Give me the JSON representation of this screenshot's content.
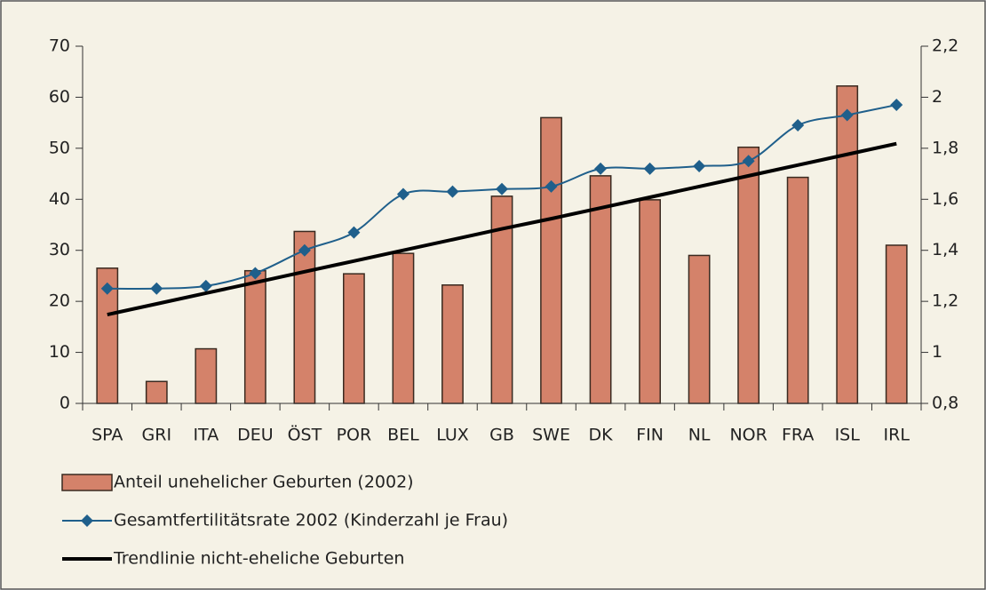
{
  "chart_data": {
    "type": "bar",
    "categories": [
      "SPA",
      "GRI",
      "ITA",
      "DEU",
      "ÖST",
      "POR",
      "BEL",
      "LUX",
      "GB",
      "SWE",
      "DK",
      "FIN",
      "NL",
      "NOR",
      "FRA",
      "ISL",
      "IRL"
    ],
    "series": [
      {
        "name": "Anteil unehelicher Geburten (2002)",
        "type": "bar",
        "color": "#d4826a",
        "values": [
          26.5,
          4.3,
          10.7,
          26,
          33.7,
          25.4,
          29.4,
          23.2,
          40.6,
          56,
          44.6,
          39.9,
          29,
          50.2,
          44.3,
          62.2,
          31
        ]
      },
      {
        "name": "Gesamtfertilitätsrate 2002 (Kinderzahl je Frau)",
        "type": "line",
        "axis": "y2",
        "color": "#1f5f8b",
        "values": [
          1.25,
          1.25,
          1.26,
          1.31,
          1.4,
          1.47,
          1.62,
          1.63,
          1.64,
          1.65,
          1.72,
          1.72,
          1.73,
          1.75,
          1.89,
          1.93,
          1.97
        ]
      },
      {
        "name": "Trendlinie nicht-eheliche Geburten",
        "type": "trend",
        "color": "#000000",
        "values": [
          17.4,
          19.5,
          21.6,
          23.7,
          25.8,
          27.9,
          30.0,
          32.1,
          34.2,
          36.2,
          38.3,
          40.4,
          42.5,
          44.6,
          46.7,
          48.8,
          50.9
        ]
      }
    ],
    "ylim": [
      0,
      70
    ],
    "yticks": [
      0,
      10,
      20,
      30,
      40,
      50,
      60,
      70
    ],
    "y2lim": [
      0.8,
      2.2
    ],
    "y2ticks": [
      {
        "value": 0.8,
        "label": "0,8"
      },
      1,
      {
        "value": 1.2,
        "label": "1,2"
      },
      {
        "value": 1.4,
        "label": "1,4"
      },
      {
        "value": 1.6,
        "label": "1,6"
      },
      {
        "value": 1.8,
        "label": "1,8"
      },
      2,
      {
        "value": 2.2,
        "label": "2,2"
      }
    ]
  }
}
